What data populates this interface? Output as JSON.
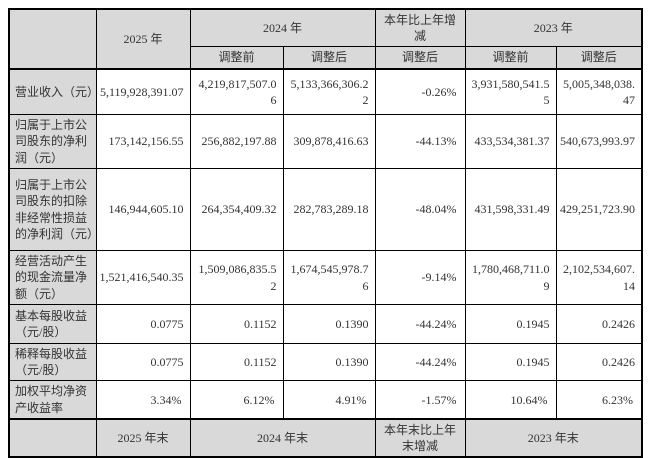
{
  "table": {
    "style": {
      "header_bg": "#d9d9d9",
      "border_color": "#000000",
      "text_color": "#333333",
      "cell_bg": "#ffffff"
    },
    "header": {
      "year_2025": "2025 年",
      "year_2024": "2024 年",
      "change_label": "本年比上年增减",
      "year_2023": "2023 年",
      "adj_before_2024": "调整前",
      "adj_after_2024": "调整后",
      "change_adj_after": "调整后",
      "adj_before_2023": "调整前",
      "adj_after_2023": "调整后"
    },
    "rows": [
      {
        "label": "营业收入（元）",
        "y2025": "5,119,928,391.07",
        "y2024_before": "4,219,817,507.06",
        "y2024_after": "5,133,366,306.22",
        "change": "-0.26%",
        "y2023_before": "3,931,580,541.55",
        "y2023_after": "5,005,348,038.47"
      },
      {
        "label": "归属于上市公司股东的净利润（元）",
        "y2025": "173,142,156.55",
        "y2024_before": "256,882,197.88",
        "y2024_after": "309,878,416.63",
        "change": "-44.13%",
        "y2023_before": "433,534,381.37",
        "y2023_after": "540,673,993.97"
      },
      {
        "label": "归属于上市公司股东的扣除非经常性损益的净利润（元）",
        "y2025": "146,944,605.10",
        "y2024_before": "264,354,409.32",
        "y2024_after": "282,783,289.18",
        "change": "-48.04%",
        "y2023_before": "431,598,331.49",
        "y2023_after": "429,251,723.90"
      },
      {
        "label": "经营活动产生的现金流量净额（元）",
        "y2025": "1,521,416,540.35",
        "y2024_before": "1,509,086,835.52",
        "y2024_after": "1,674,545,978.76",
        "change": "-9.14%",
        "y2023_before": "1,780,468,711.09",
        "y2023_after": "2,102,534,607.14"
      },
      {
        "label": "基本每股收益（元/股）",
        "y2025": "0.0775",
        "y2024_before": "0.1152",
        "y2024_after": "0.1390",
        "change": "-44.24%",
        "y2023_before": "0.1945",
        "y2023_after": "0.2426"
      },
      {
        "label": "稀释每股收益（元/股）",
        "y2025": "0.0775",
        "y2024_before": "0.1152",
        "y2024_after": "0.1390",
        "change": "-44.24%",
        "y2023_before": "0.1945",
        "y2023_after": "0.2426"
      },
      {
        "label": "加权平均净资产收益率",
        "y2025": "3.34%",
        "y2024_before": "6.12%",
        "y2024_after": "4.91%",
        "change": "-1.57%",
        "y2023_before": "10.64%",
        "y2023_after": "6.23%"
      }
    ],
    "footer": {
      "year_2025_end": "2025 年末",
      "year_2024_end": "2024 年末",
      "change_label_end": "本年末比上年\n末增减",
      "year_2023_end": "2023 年末"
    }
  }
}
